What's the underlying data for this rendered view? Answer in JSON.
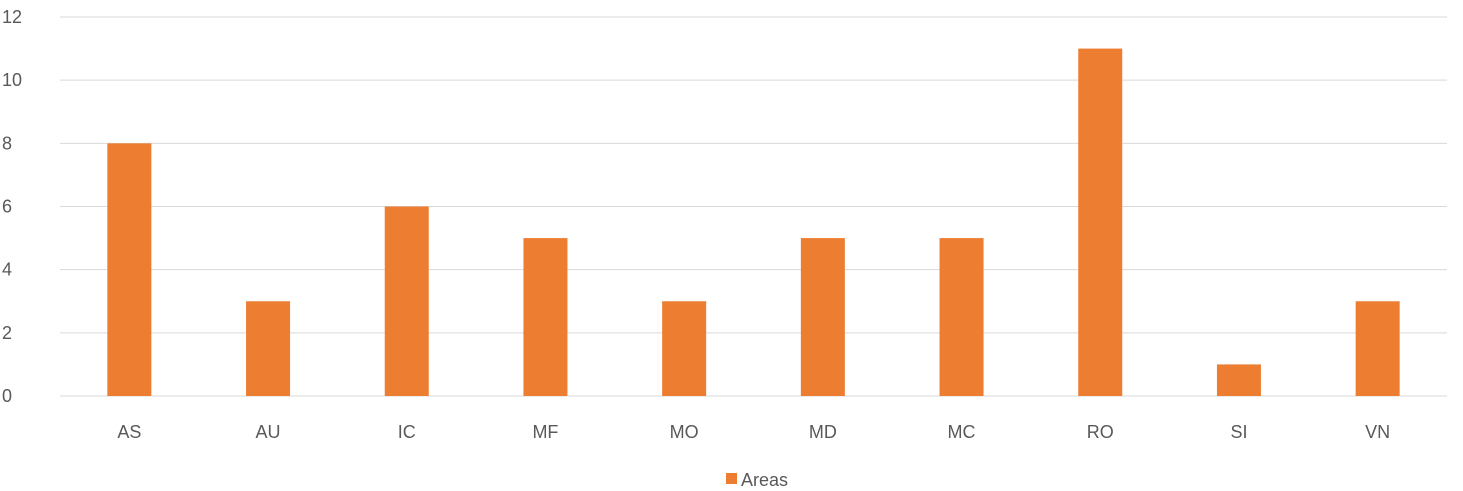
{
  "chart_data": {
    "type": "bar",
    "categories": [
      "AS",
      "AU",
      "IC",
      "MF",
      "MO",
      "MD",
      "MC",
      "RO",
      "SI",
      "VN"
    ],
    "series": [
      {
        "name": "Areas",
        "values": [
          8,
          3,
          6,
          5,
          3,
          5,
          5,
          11,
          1,
          3
        ],
        "color": "#ED7D31"
      }
    ],
    "ylim": [
      0,
      12
    ],
    "yticks": [
      0,
      2,
      4,
      6,
      8,
      10,
      12
    ],
    "title": "",
    "xlabel": "",
    "ylabel": "",
    "grid": "horizontal",
    "legend": "bottom-center",
    "gridColor": "#D9D9D9",
    "textColor": "#595959"
  }
}
